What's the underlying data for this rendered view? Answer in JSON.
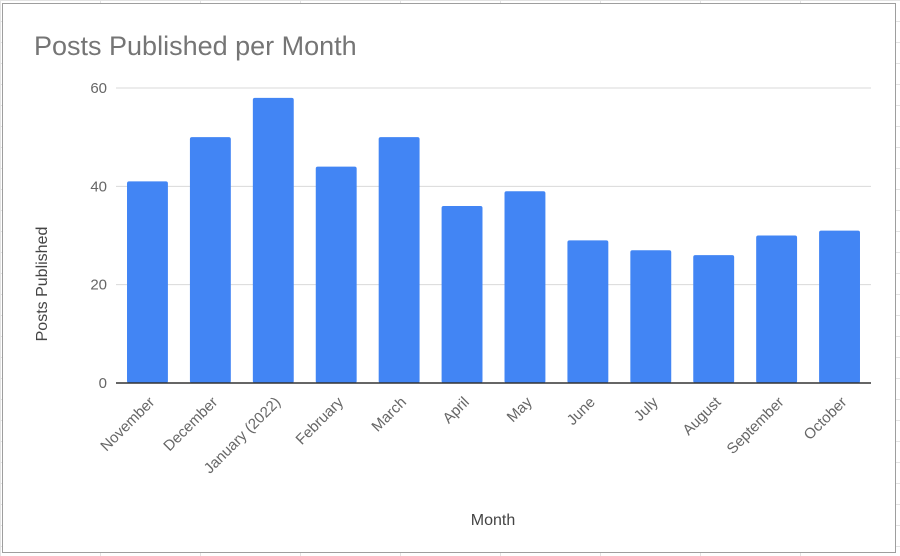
{
  "chart_data": {
    "type": "bar",
    "title": "Posts Published per Month",
    "xlabel": "Month",
    "ylabel": "Posts Published",
    "ylim": [
      0,
      60
    ],
    "yticks": [
      0,
      20,
      40,
      60
    ],
    "grid": true,
    "legend": "none",
    "bar_color": "#4285f4",
    "categories": [
      "November",
      "December",
      "January (2022)",
      "February",
      "March",
      "April",
      "May",
      "June",
      "July",
      "August",
      "September",
      "October"
    ],
    "values": [
      41,
      50,
      58,
      44,
      50,
      36,
      39,
      29,
      27,
      26,
      30,
      31
    ]
  }
}
